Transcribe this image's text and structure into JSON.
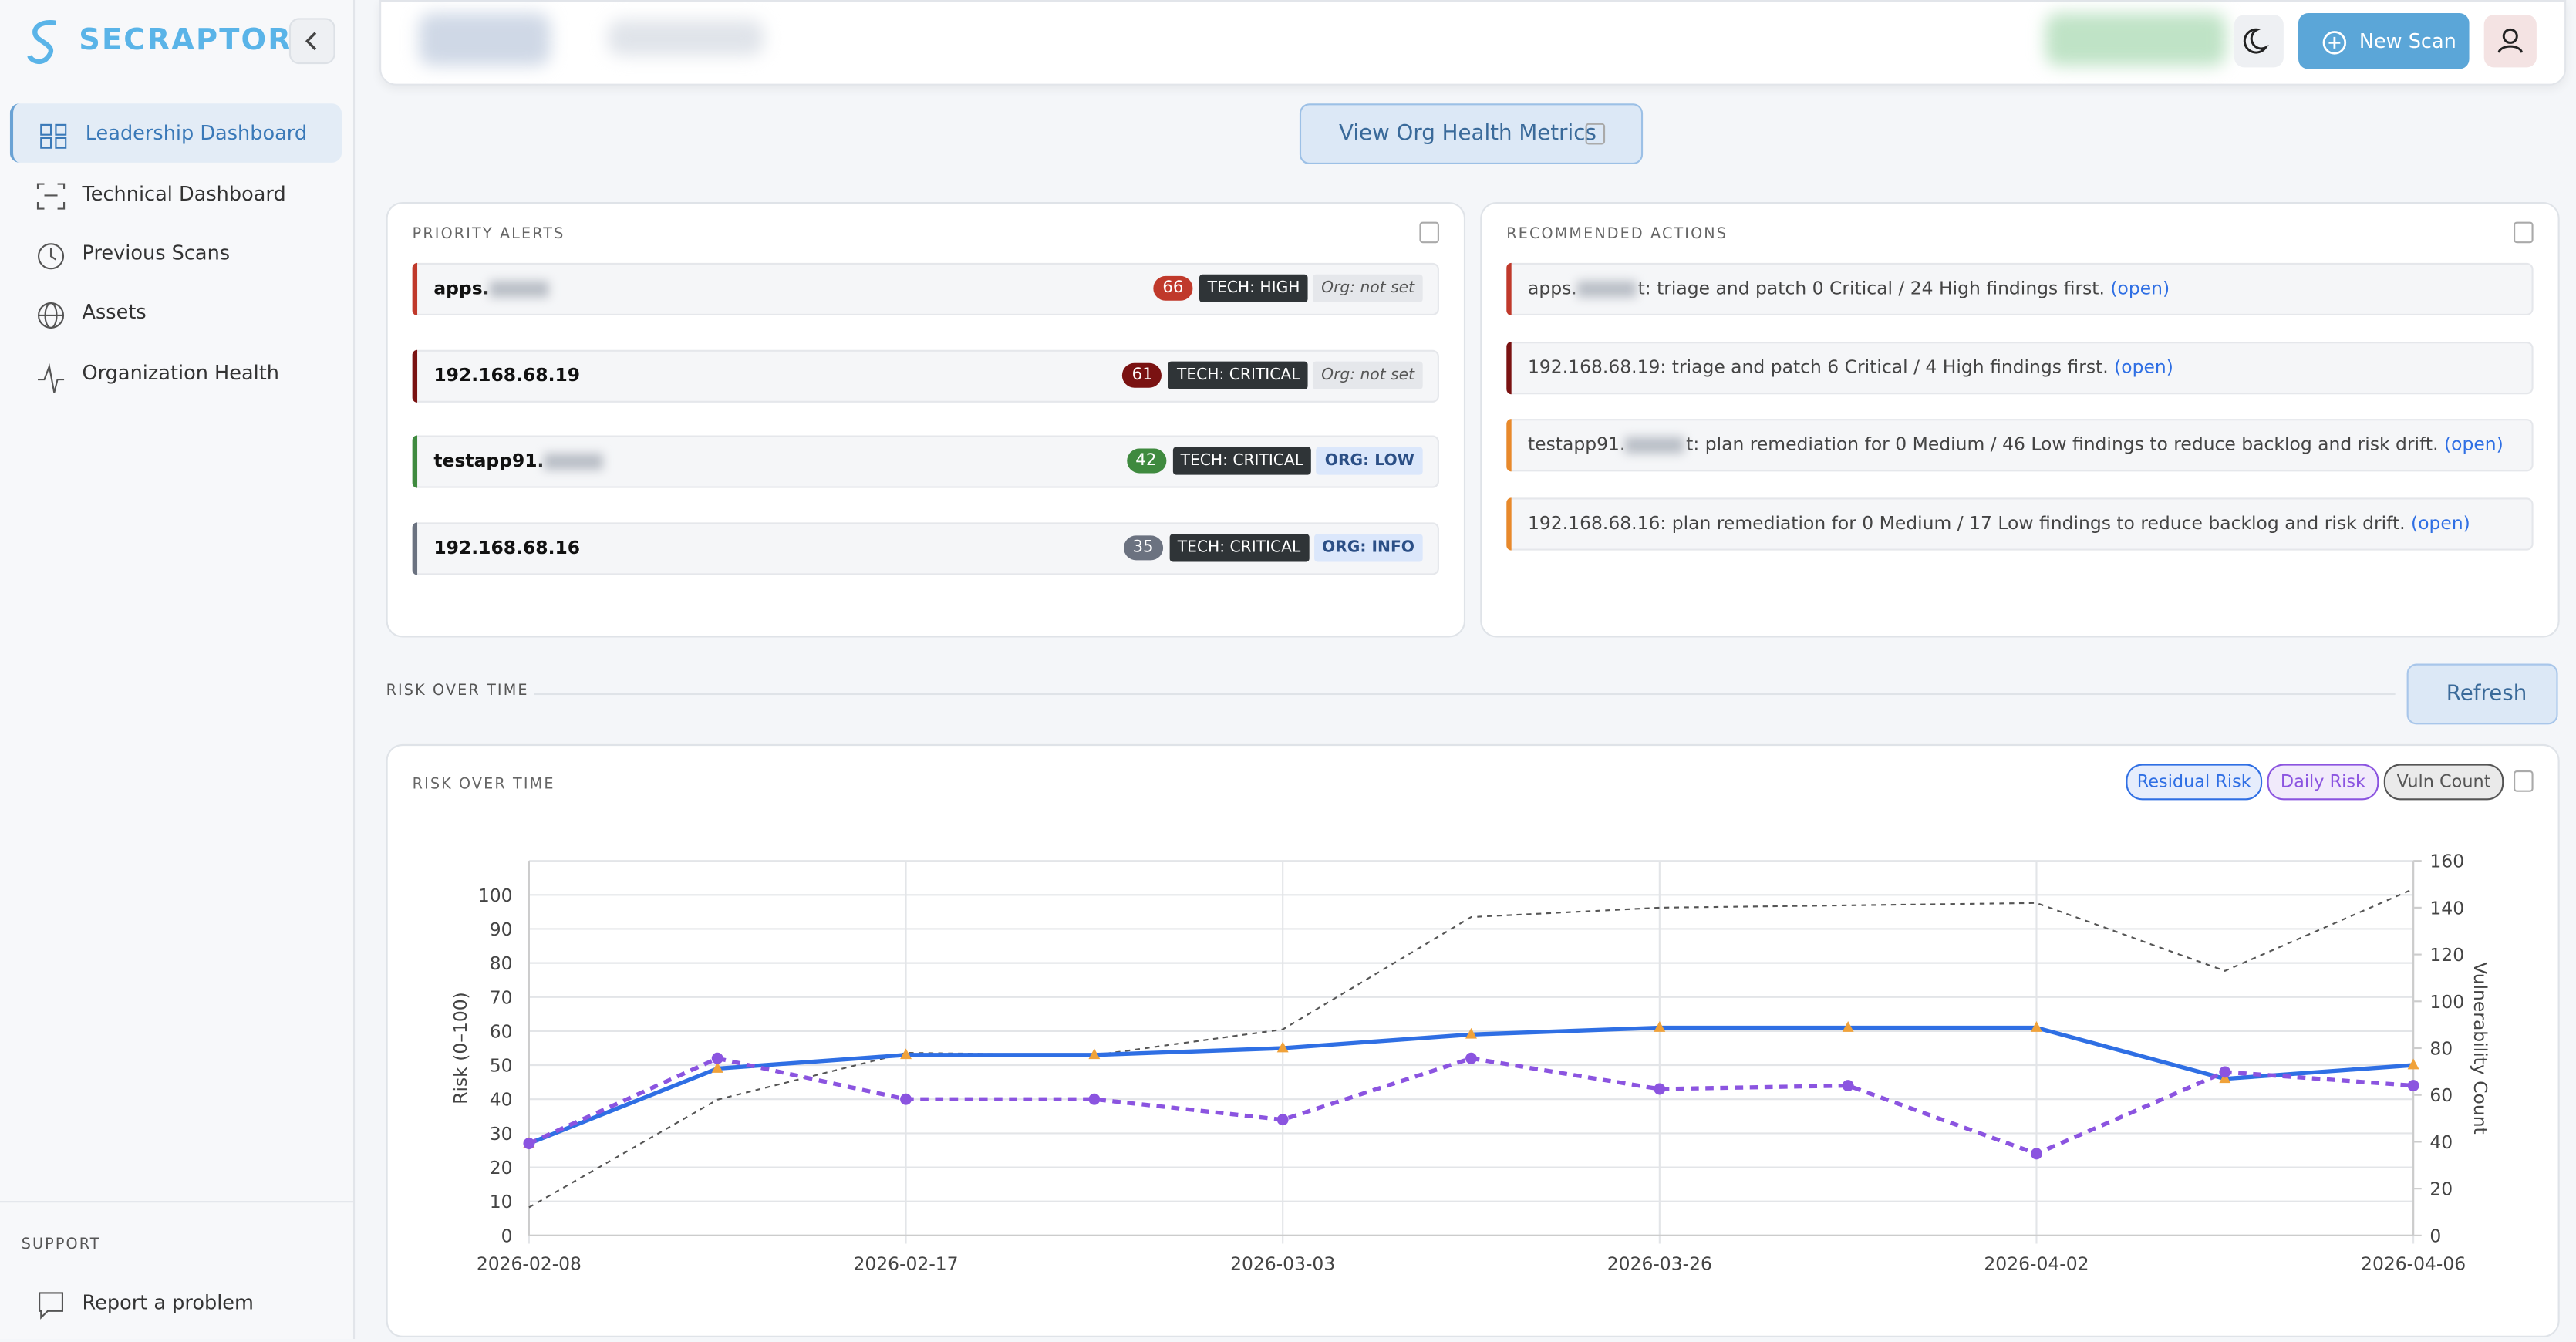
{
  "brand": "SECRAPTOR",
  "nav": [
    "Leadership Dashboard",
    "Technical Dashboard",
    "Previous Scans",
    "Assets",
    "Organization Health"
  ],
  "support": {
    "heading": "SUPPORT",
    "link": "Report a problem"
  },
  "header": {
    "new_scan": "New Scan"
  },
  "org_health_button": "View Org Health Metrics",
  "priority_alerts": {
    "title": "PRIORITY ALERTS",
    "items": [
      {
        "host": "apps.",
        "score": 66,
        "tech": "TECH: HIGH",
        "org": "Org: not set",
        "color": "#c0392b"
      },
      {
        "host": "192.168.68.19",
        "score": 61,
        "tech": "TECH: CRITICAL",
        "org": "Org: not set",
        "color": "#7a1212"
      },
      {
        "host": "testapp91.",
        "score": 42,
        "tech": "TECH: CRITICAL",
        "org": "ORG: LOW",
        "color": "#3f8a3f"
      },
      {
        "host": "192.168.68.16",
        "score": 35,
        "tech": "TECH: CRITICAL",
        "org": "ORG: INFO",
        "color": "#6b7280"
      }
    ]
  },
  "recommended_actions": {
    "title": "RECOMMENDED ACTIONS",
    "items": [
      {
        "host": "apps.",
        "text": "t: triage and patch 0 Critical / 24 High findings first.",
        "link": "(open)",
        "color": "#c0392b"
      },
      {
        "text": "192.168.68.19: triage and patch 6 Critical / 4 High findings first.",
        "link": "(open)",
        "color": "#7a1212"
      },
      {
        "host": "testapp91.",
        "text": "t: plan remediation for 0 Medium / 46 Low findings to reduce backlog and risk drift.",
        "link": "(open)",
        "color": "#e8892b"
      },
      {
        "text": "192.168.68.16: plan remediation for 0 Medium / 17 Low findings to reduce backlog and risk drift.",
        "link": "(open)",
        "color": "#e8892b"
      }
    ]
  },
  "risk_section": {
    "title": "RISK OVER TIME",
    "refresh": "Refresh"
  },
  "chart_data": {
    "type": "line",
    "title": "RISK OVER TIME",
    "categories": [
      "2026-02-08",
      null,
      "2026-02-17",
      null,
      "2026-03-03",
      null,
      "2026-03-26",
      null,
      "2026-04-02",
      null,
      "2026-04-06"
    ],
    "series": [
      {
        "name": "Residual Risk",
        "color": "#2f6fe4",
        "marker_color": "#f0a23a",
        "values": [
          27,
          49,
          53,
          53,
          55,
          59,
          61,
          61,
          61,
          46,
          50
        ]
      },
      {
        "name": "Daily Risk",
        "color": "#8b54e0",
        "values": [
          27,
          52,
          40,
          40,
          34,
          52,
          43,
          44,
          24,
          48,
          44
        ]
      },
      {
        "name": "Vuln Count",
        "color": "#555555",
        "axis": "y2",
        "values": [
          12,
          58,
          78,
          77,
          88,
          136,
          140,
          141,
          142,
          113,
          148
        ]
      }
    ],
    "ylim": [
      0,
      110
    ],
    "yticks": [
      0,
      10,
      20,
      30,
      40,
      50,
      60,
      70,
      80,
      90,
      100
    ],
    "y2lim": [
      0,
      160
    ],
    "y2ticks": [
      0,
      20,
      40,
      60,
      80,
      100,
      120,
      140,
      160
    ],
    "y_label": "Risk (0–100)",
    "y2_label": "Vulnerability Count",
    "grid": true
  }
}
